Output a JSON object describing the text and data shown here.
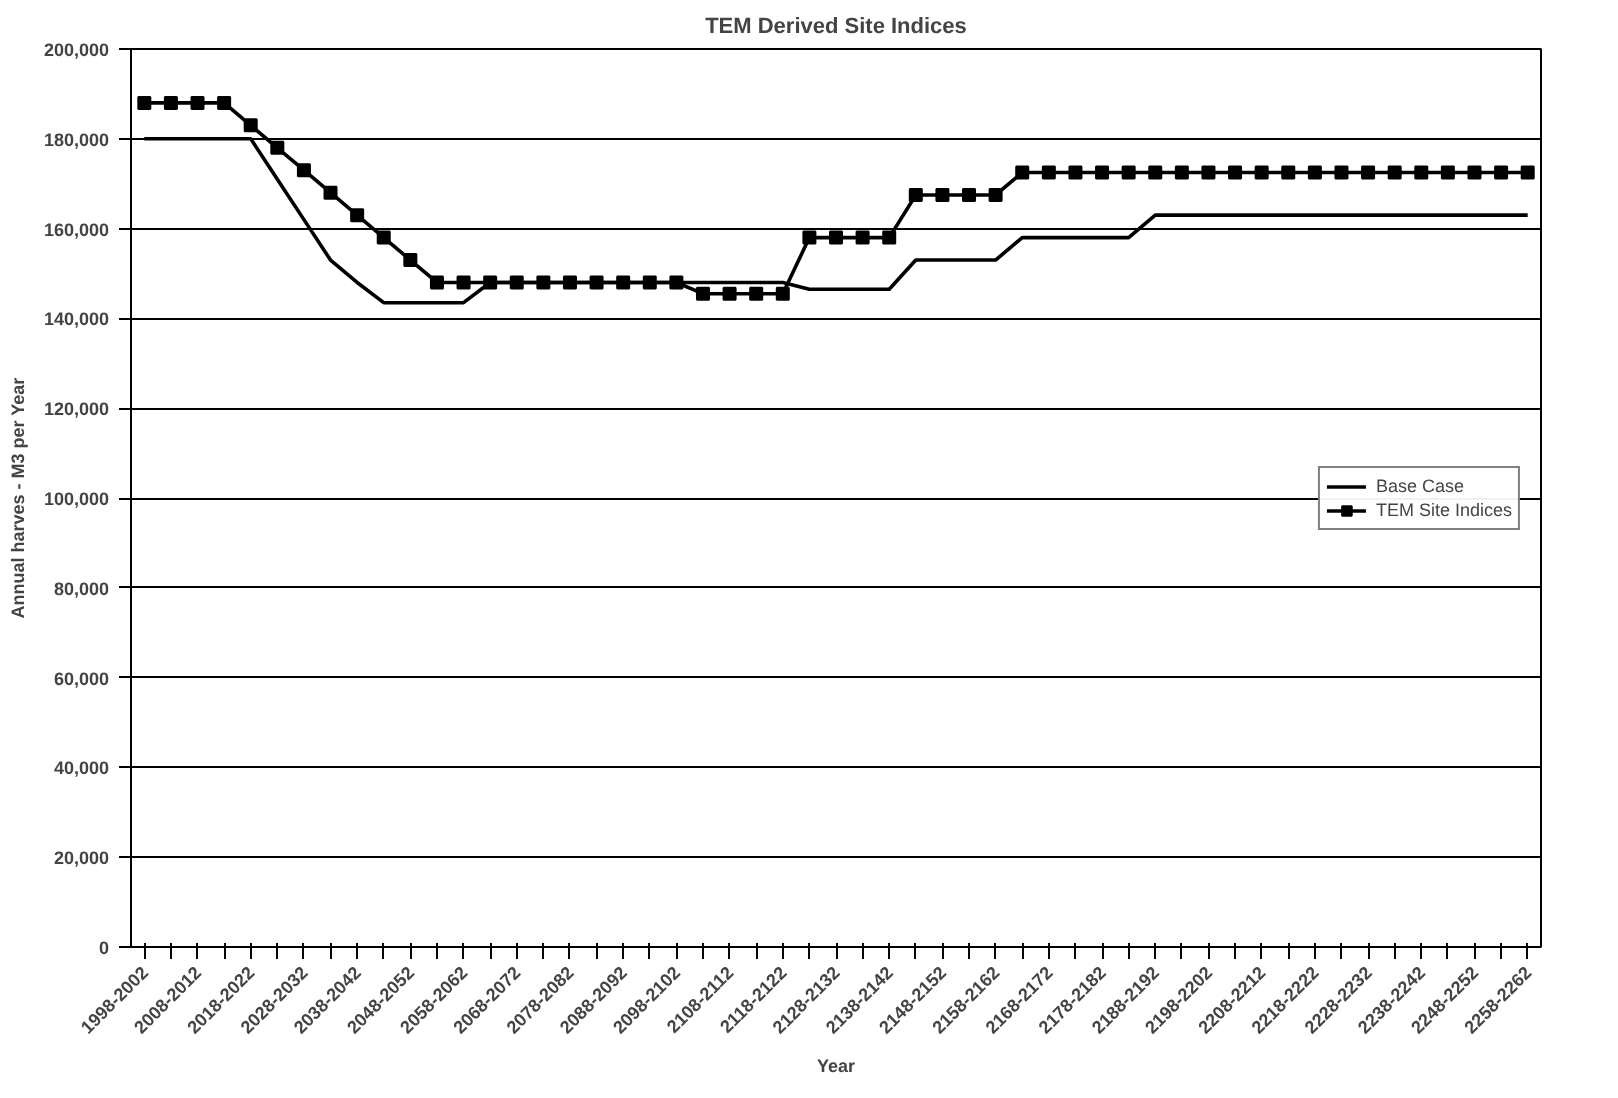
{
  "chart_data": {
    "type": "line",
    "title": "TEM Derived Site Indices",
    "xlabel": "Year",
    "ylabel": "Annual harves - M3 per Year",
    "categories": [
      "1998-2002",
      null,
      "2008-2012",
      null,
      "2018-2022",
      null,
      "2028-2032",
      null,
      "2038-2042",
      null,
      "2048-2052",
      null,
      "2058-2062",
      null,
      "2068-2072",
      null,
      "2078-2082",
      null,
      "2088-2092",
      null,
      "2098-2102",
      null,
      "2108-2112",
      null,
      "2118-2122",
      null,
      "2128-2132",
      null,
      "2138-2142",
      null,
      "2148-2152",
      null,
      "2158-2162",
      null,
      "2168-2172",
      null,
      "2178-2182",
      null,
      "2188-2192",
      null,
      "2198-2202",
      null,
      "2208-2212",
      null,
      "2218-2222",
      null,
      "2228-2232",
      null,
      "2238-2242",
      null,
      "2248-2252",
      null,
      "2258-2262"
    ],
    "series": [
      {
        "name": "Base Case",
        "color": "#000000",
        "marker": "none",
        "values": [
          180000,
          180000,
          180000,
          180000,
          180000,
          171000,
          162000,
          153000,
          148000,
          143500,
          143500,
          143500,
          143500,
          148000,
          148000,
          148000,
          148000,
          148000,
          148000,
          148000,
          148000,
          148000,
          148000,
          148000,
          148000,
          146500,
          146500,
          146500,
          146500,
          153000,
          153000,
          153000,
          153000,
          158000,
          158000,
          158000,
          158000,
          158000,
          163000,
          163000,
          163000,
          163000,
          163000,
          163000,
          163000,
          163000,
          163000,
          163000,
          163000,
          163000,
          163000,
          163000,
          163000
        ]
      },
      {
        "name": "TEM Site Indices",
        "color": "#000000",
        "marker": "square",
        "values": [
          188000,
          188000,
          188000,
          188000,
          183000,
          178000,
          173000,
          168000,
          163000,
          158000,
          153000,
          148000,
          148000,
          148000,
          148000,
          148000,
          148000,
          148000,
          148000,
          148000,
          148000,
          145500,
          145500,
          145500,
          145500,
          158000,
          158000,
          158000,
          158000,
          167500,
          167500,
          167500,
          167500,
          172500,
          172500,
          172500,
          172500,
          172500,
          172500,
          172500,
          172500,
          172500,
          172500,
          172500,
          172500,
          172500,
          172500,
          172500,
          172500,
          172500,
          172500,
          172500,
          172500
        ]
      }
    ],
    "ylim": [
      0,
      200000
    ],
    "yticks": [
      {
        "value": 0,
        "label": "0"
      },
      {
        "value": 20000,
        "label": "20,000"
      },
      {
        "value": 40000,
        "label": "40,000"
      },
      {
        "value": 60000,
        "label": "60,000"
      },
      {
        "value": 80000,
        "label": "80,000"
      },
      {
        "value": 100000,
        "label": "100,000"
      },
      {
        "value": 120000,
        "label": "120,000"
      },
      {
        "value": 140000,
        "label": "140,000"
      },
      {
        "value": 160000,
        "label": "160,000"
      },
      {
        "value": 180000,
        "label": "180,000"
      },
      {
        "value": 200000,
        "label": "200,000"
      }
    ],
    "grid": "y",
    "legend": "right",
    "line_style": "solid"
  }
}
